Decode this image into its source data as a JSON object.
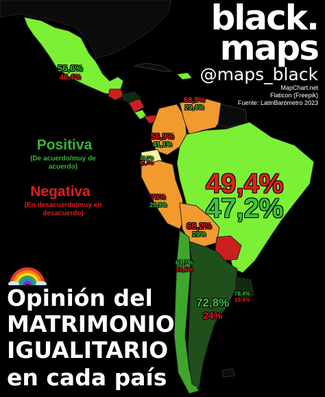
{
  "brand": {
    "title": "black.\nmaps",
    "handle": "@maps_black",
    "credits": [
      "MapChart.net",
      "Flaticon (Freepik)",
      "Fuente: LatinBarómetro 2023"
    ]
  },
  "legend": {
    "positive": {
      "label": "Positiva",
      "description": "(De acuerdo/muy de acuerdo)",
      "color": "#3bb33b"
    },
    "negative": {
      "label": "Negativa",
      "description": "(En desacuerdo/muy en desacuerdo)",
      "color": "#d92020"
    }
  },
  "headline": {
    "icon": "rainbow-icon",
    "line1": "Opinión del",
    "line2": "MATRIMONIO",
    "line3": "IGUALITARIO",
    "line4": "en cada país"
  },
  "map_colors": {
    "ocean": "#000000",
    "high_positive": "#7cf034",
    "medium_positive": "#3fa62c",
    "dark_positive": "#1f4f1a",
    "darkest_positive": "#0f2b0d",
    "orange": "#f29a2e",
    "light_orange": "#f8c18a",
    "negative_red": "#cc1f1f",
    "pale_yellow": "#f7f2a0",
    "border": "#222222"
  },
  "country_values": {
    "mexico": {
      "positive": "56,6%",
      "negative": "40,4%"
    },
    "colombia": {
      "positive": "56,9%",
      "negative": "41,1%"
    },
    "venezuela": {
      "positive": "68,9%",
      "negative": "29,4%"
    },
    "ecuador": {
      "positive": "35,7%",
      "negative": "61,7%"
    },
    "peru": {
      "positive": "73%",
      "negative": "25,9%"
    },
    "brazil": {
      "positive": "47,2%",
      "negative": "49,4%"
    },
    "bolivia": {
      "positive": "68,2%",
      "negative": "29%"
    },
    "chile": {
      "positive": "63,7%",
      "negative": "33,6%"
    },
    "argentina": {
      "positive": "72,8%",
      "negative": "24%"
    },
    "uruguay": {
      "positive": "78,4%",
      "negative": "19,4%"
    }
  }
}
